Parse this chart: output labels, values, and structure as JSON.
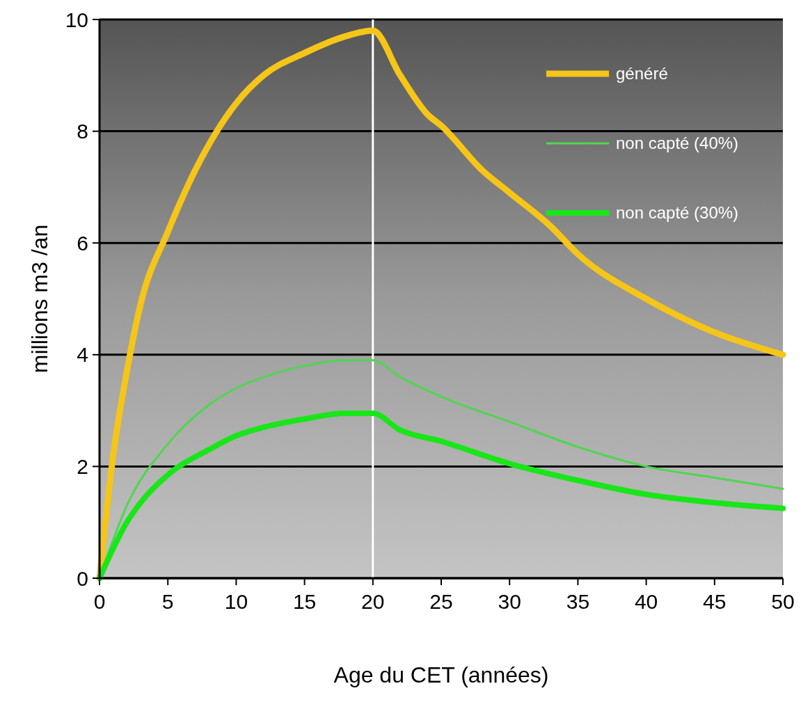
{
  "chart_data": {
    "type": "line",
    "xlabel": "Age du CET (années)",
    "ylabel": "millions m3 /an",
    "xlim": [
      0,
      50
    ],
    "xticks": [
      0,
      5,
      10,
      15,
      20,
      25,
      30,
      35,
      40,
      45,
      50
    ],
    "ylim": [
      0,
      10
    ],
    "yticks": [
      0,
      2,
      4,
      6,
      8,
      10
    ],
    "grid": "y",
    "legend": "top right",
    "ref_lines": [
      {
        "axis": "x",
        "value": 20,
        "color": "#ffffff"
      }
    ],
    "series": [
      {
        "name": "généré",
        "color": "#f5c518",
        "x": [
          0,
          1,
          2,
          3,
          5,
          7,
          10,
          12,
          15,
          18,
          20,
          22,
          24,
          25,
          28,
          30,
          33,
          35,
          40,
          45,
          50
        ],
        "values": [
          0,
          2.2,
          3.7,
          4.9,
          6.2,
          7.3,
          8.5,
          9.0,
          9.4,
          9.7,
          9.8,
          9.0,
          8.3,
          8.1,
          7.3,
          6.9,
          6.3,
          5.8,
          5.0,
          4.4,
          4.0
        ]
      },
      {
        "name": "non capté (40%)",
        "color": "#4fd64f",
        "x": [
          0,
          2,
          5,
          8,
          10,
          12,
          15,
          18,
          20,
          22,
          25,
          30,
          35,
          40,
          45,
          50
        ],
        "values": [
          0,
          1.3,
          2.4,
          3.1,
          3.4,
          3.6,
          3.8,
          3.9,
          3.9,
          3.6,
          3.25,
          2.8,
          2.35,
          2.0,
          1.8,
          1.6
        ]
      },
      {
        "name": "non capté (30%)",
        "color": "#19e619",
        "x": [
          0,
          2,
          3,
          5,
          8,
          10,
          12,
          15,
          18,
          20,
          22,
          25,
          30,
          35,
          40,
          45,
          50
        ],
        "values": [
          0,
          1.0,
          1.35,
          1.85,
          2.3,
          2.55,
          2.7,
          2.85,
          2.95,
          2.95,
          2.65,
          2.45,
          2.05,
          1.75,
          1.5,
          1.35,
          1.25
        ]
      }
    ]
  }
}
